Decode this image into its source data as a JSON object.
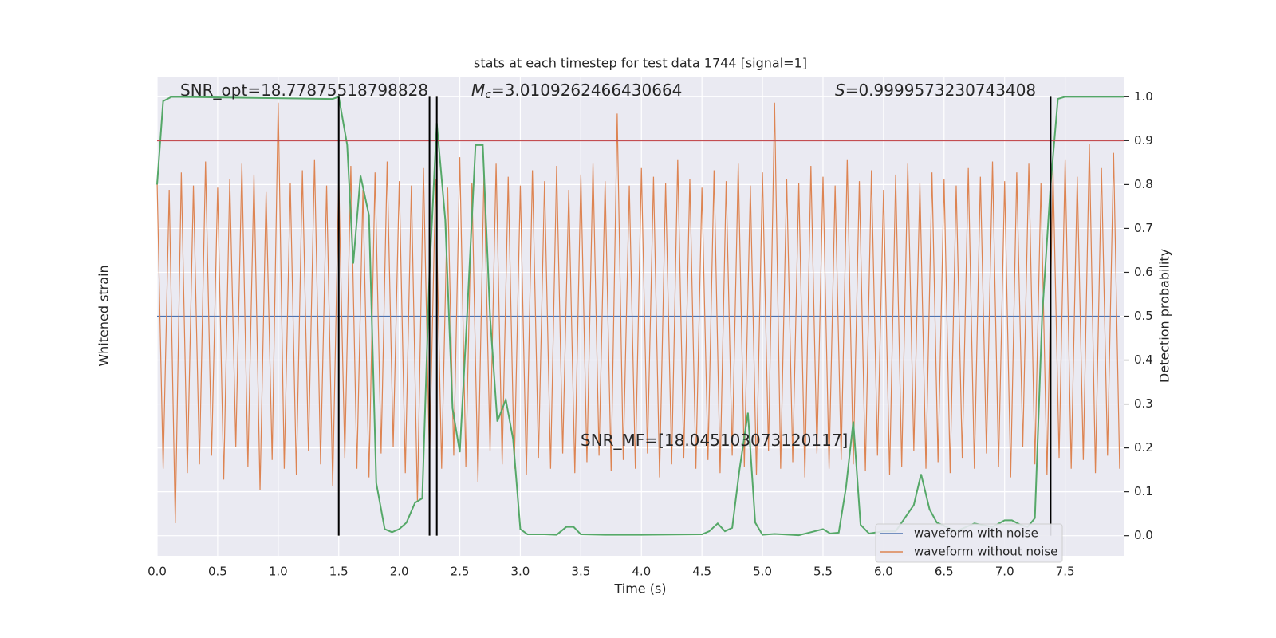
{
  "chart_data": {
    "type": "line",
    "title": "stats at each timestep for test data 1744 [signal=1]",
    "xlabel": "Time (s)",
    "ylabel": "Whitened strain",
    "y2label": "Detection probability",
    "xlim": [
      0,
      7.99
    ],
    "xticks": [
      {
        "value": 0,
        "label": "0.0"
      },
      0.5,
      {
        "value": 1,
        "label": "1.0"
      },
      1.5,
      {
        "value": 2,
        "label": "2.0"
      },
      2.5,
      {
        "value": 3,
        "label": "3.0"
      },
      3.5,
      {
        "value": 4,
        "label": "4.0"
      },
      4.5,
      {
        "value": 5,
        "label": "5.0"
      },
      5.5,
      {
        "value": 6,
        "label": "6.0"
      },
      6.5,
      {
        "value": 7,
        "label": "7.0"
      },
      7.5
    ],
    "ylim": [
      -1.1,
      1.1
    ],
    "y2lim": [
      -0.046,
      1.046
    ],
    "y2ticks": [
      {
        "value": 0,
        "label": "0.0"
      },
      0.1,
      0.2,
      0.3,
      0.4,
      0.5,
      0.6,
      0.7,
      0.8,
      0.9,
      {
        "value": 1,
        "label": "1.0"
      }
    ],
    "grid": true,
    "legend": "lower right",
    "series": [
      {
        "name": "waveform with noise",
        "color": "#4c72b0",
        "x": [
          0,
          7.95
        ],
        "values": [
          0,
          0
        ]
      },
      {
        "name": "waveform without noise",
        "color": "#dd8452",
        "x": [
          0,
          0.05,
          0.1,
          0.15,
          0.2,
          0.25,
          0.3,
          0.35,
          0.4,
          0.45,
          0.5,
          0.55,
          0.6,
          0.65,
          0.7,
          0.75,
          0.8,
          0.85,
          0.9,
          0.95,
          1,
          1.05,
          1.1,
          1.15,
          1.2,
          1.25,
          1.3,
          1.35,
          1.4,
          1.45,
          1.5,
          1.55,
          1.6,
          1.65,
          1.7,
          1.75,
          1.8,
          1.85,
          1.9,
          1.95,
          2,
          2.05,
          2.1,
          2.15,
          2.2,
          2.25,
          2.3,
          2.35,
          2.4,
          2.45,
          2.5,
          2.55,
          2.6,
          2.65,
          2.7,
          2.75,
          2.8,
          2.85,
          2.9,
          2.95,
          3,
          3.05,
          3.1,
          3.15,
          3.2,
          3.25,
          3.3,
          3.35,
          3.4,
          3.45,
          3.5,
          3.55,
          3.6,
          3.65,
          3.7,
          3.75,
          3.8,
          3.85,
          3.9,
          3.95,
          4,
          4.05,
          4.1,
          4.15,
          4.2,
          4.25,
          4.3,
          4.35,
          4.4,
          4.45,
          4.5,
          4.55,
          4.6,
          4.65,
          4.7,
          4.75,
          4.8,
          4.85,
          4.9,
          4.95,
          5,
          5.05,
          5.1,
          5.15,
          5.2,
          5.25,
          5.3,
          5.35,
          5.4,
          5.45,
          5.5,
          5.55,
          5.6,
          5.65,
          5.7,
          5.75,
          5.8,
          5.85,
          5.9,
          5.95,
          6,
          6.05,
          6.1,
          6.15,
          6.2,
          6.25,
          6.3,
          6.35,
          6.4,
          6.45,
          6.5,
          6.55,
          6.6,
          6.65,
          6.7,
          6.75,
          6.8,
          6.85,
          6.9,
          6.95,
          7,
          7.05,
          7.1,
          7.15,
          7.2,
          7.25,
          7.3,
          7.35,
          7.4,
          7.45,
          7.5,
          7.55,
          7.6,
          7.65,
          7.7,
          7.75,
          7.8,
          7.85,
          7.9,
          7.95
        ],
        "values": [
          0.62,
          -0.7,
          0.58,
          -0.95,
          0.66,
          -0.72,
          0.6,
          -0.68,
          0.71,
          -0.64,
          0.59,
          -0.75,
          0.63,
          -0.6,
          0.7,
          -0.69,
          0.65,
          -0.8,
          0.57,
          -0.66,
          0.98,
          -0.7,
          0.61,
          -0.73,
          0.67,
          -0.62,
          0.72,
          -0.68,
          0.6,
          -0.78,
          0.64,
          -0.65,
          0.69,
          -0.7,
          0.58,
          -0.74,
          0.66,
          -0.63,
          0.71,
          -0.6,
          0.62,
          -0.72,
          0.6,
          -0.85,
          0.68,
          -0.67,
          0.63,
          -0.7,
          0.59,
          -0.64,
          0.73,
          -0.69,
          0.61,
          -0.76,
          0.66,
          -0.62,
          0.7,
          -0.68,
          0.64,
          -0.7,
          0.6,
          -0.73,
          0.67,
          -0.65,
          0.62,
          -0.7,
          0.69,
          -0.63,
          0.58,
          -0.72,
          0.65,
          -0.67,
          0.7,
          -0.64,
          0.62,
          -0.71,
          0.93,
          -0.66,
          0.6,
          -0.7,
          0.68,
          -0.63,
          0.64,
          -0.74,
          0.61,
          -0.68,
          0.72,
          -0.65,
          0.63,
          -0.7,
          0.59,
          -0.66,
          0.67,
          -0.72,
          0.62,
          -0.64,
          0.7,
          -0.69,
          0.6,
          -0.73,
          0.66,
          -0.62,
          0.98,
          -0.7,
          0.63,
          -0.67,
          0.61,
          -0.74,
          0.69,
          -0.63,
          0.64,
          -0.7,
          0.6,
          -0.66,
          0.72,
          -0.68,
          0.62,
          -0.71,
          0.67,
          -0.64,
          0.58,
          -0.73,
          0.65,
          -0.69,
          0.7,
          -0.62,
          0.61,
          -0.7,
          0.66,
          -0.67,
          0.63,
          -0.72,
          0.6,
          -0.65,
          0.68,
          -0.7,
          0.64,
          -0.63,
          0.71,
          -0.69,
          0.62,
          -0.74,
          0.66,
          -0.6,
          0.7,
          -0.68,
          0.61,
          -0.73,
          0.67,
          -0.65,
          0.72,
          -0.7,
          0.64,
          -0.66,
          0.79,
          -0.72,
          0.68,
          -0.64,
          0.75,
          -0.7
        ]
      },
      {
        "color": "#55a868",
        "axis": "y2",
        "x": [
          0,
          0.05,
          0.12,
          1.45,
          1.5,
          1.57,
          1.62,
          1.68,
          1.75,
          1.81,
          1.88,
          1.94,
          2,
          2.06,
          2.13,
          2.19,
          2.25,
          2.31,
          2.38,
          2.44,
          2.5,
          2.56,
          2.63,
          2.69,
          2.75,
          2.81,
          2.88,
          2.94,
          3,
          3.06,
          3.2,
          3.3,
          3.38,
          3.44,
          3.5,
          3.7,
          4,
          4.5,
          4.56,
          4.63,
          4.69,
          4.75,
          4.81,
          4.88,
          4.94,
          5,
          5.1,
          5.3,
          5.5,
          5.56,
          5.63,
          5.69,
          5.75,
          5.81,
          5.88,
          6,
          6.1,
          6.25,
          6.31,
          6.38,
          6.44,
          6.6,
          6.75,
          6.9,
          7,
          7.06,
          7.13,
          7.19,
          7.25,
          7.31,
          7.38,
          7.44,
          7.5,
          7.99
        ],
        "values": [
          0.8,
          0.99,
          1,
          0.995,
          1,
          0.89,
          0.62,
          0.82,
          0.73,
          0.12,
          0.015,
          0.008,
          0.015,
          0.03,
          0.075,
          0.085,
          0.6,
          0.94,
          0.72,
          0.29,
          0.19,
          0.5,
          0.89,
          0.89,
          0.5,
          0.26,
          0.31,
          0.22,
          0.015,
          0.003,
          0.003,
          0.002,
          0.02,
          0.02,
          0.003,
          0.002,
          0.002,
          0.003,
          0.01,
          0.028,
          0.01,
          0.018,
          0.15,
          0.28,
          0.03,
          0.002,
          0.004,
          0.001,
          0.015,
          0.005,
          0.007,
          0.11,
          0.26,
          0.025,
          0.005,
          0.01,
          0.01,
          0.07,
          0.14,
          0.06,
          0.03,
          0.01,
          0.028,
          0.02,
          0.035,
          0.035,
          0.025,
          0.02,
          0.04,
          0.5,
          0.8,
          0.995,
          1,
          1
        ]
      }
    ],
    "hlines": [
      {
        "value": 0.9,
        "color": "#c44e52"
      }
    ],
    "vlines": [
      1.5,
      2.25,
      2.31,
      7.38
    ],
    "vline_span": [
      0,
      1
    ],
    "annotations": [
      {
        "text": "SNR_opt=18.77875518798828"
      },
      {
        "symbol": "M",
        "subscript": "c",
        "text": "=3.0109262466430664"
      },
      {
        "symbol": "S",
        "text": "=0.9999573230743408"
      },
      {
        "text": "SNR_MF=[18.045103073120117]"
      }
    ]
  }
}
